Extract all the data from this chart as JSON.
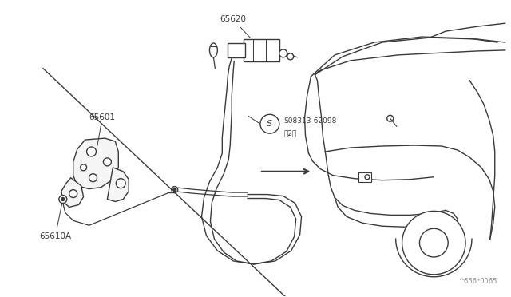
{
  "background_color": "#ffffff",
  "line_color": "#3a3a3a",
  "diagram_code": "^656*0065",
  "label_65620": "65620",
  "label_65601": "65601",
  "label_65610A": "65610A",
  "label_bolt": "S08313-62098",
  "label_bolt2": "（2）"
}
